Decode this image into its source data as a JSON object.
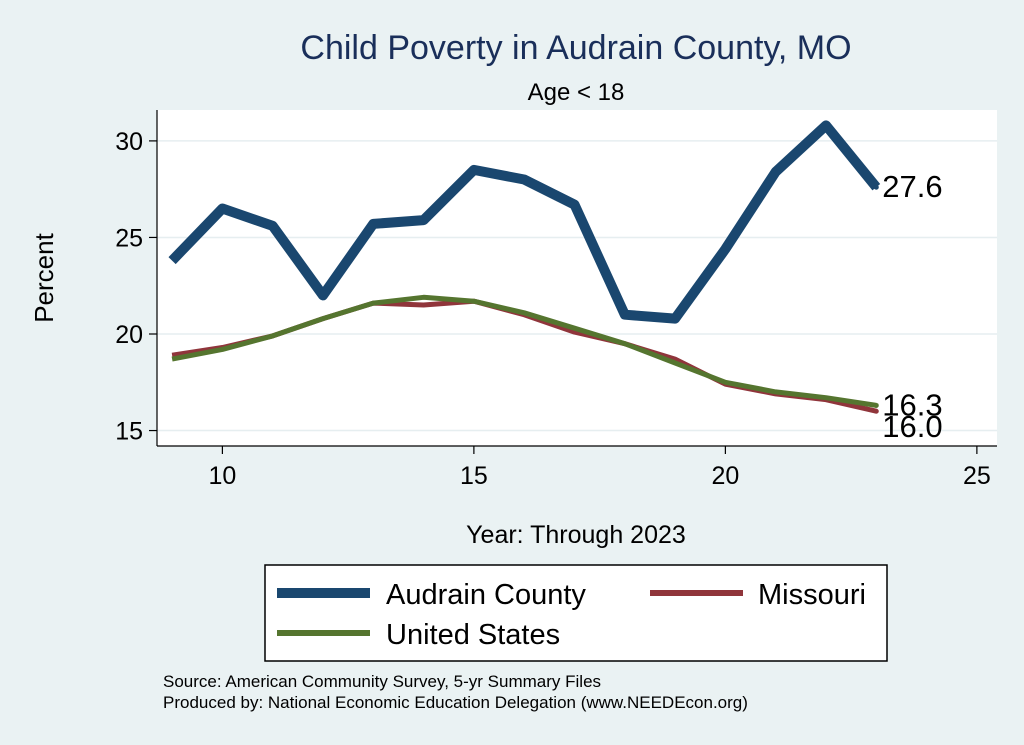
{
  "chart_data": {
    "type": "line",
    "title": "Child Poverty in Audrain County, MO",
    "subtitle": "Age < 18",
    "xlabel": "Year: Through 2023",
    "ylabel": "Percent",
    "xlim": [
      8.7,
      25.4
    ],
    "ylim": [
      14.2,
      31.6
    ],
    "xticks": [
      10,
      15,
      20,
      25
    ],
    "yticks": [
      15,
      20,
      25,
      30
    ],
    "grid": true,
    "legend_position": "bottom",
    "x": [
      9,
      10,
      11,
      12,
      13,
      14,
      15,
      16,
      17,
      18,
      19,
      20,
      21,
      22,
      23
    ],
    "series": [
      {
        "name": "Audrain County",
        "color": "#1a476f",
        "values": [
          23.8,
          26.5,
          25.6,
          22.0,
          25.7,
          25.9,
          28.5,
          28.0,
          26.7,
          21.0,
          20.8,
          24.4,
          28.4,
          30.8,
          27.6
        ],
        "end_label": "27.6"
      },
      {
        "name": "Missouri",
        "color": "#90353b",
        "values": [
          18.9,
          19.3,
          19.9,
          20.8,
          21.6,
          21.5,
          21.7,
          21.0,
          20.1,
          19.5,
          18.7,
          17.4,
          16.9,
          16.6,
          16.0
        ],
        "end_label": "16.0"
      },
      {
        "name": "United States",
        "color": "#55752f",
        "values": [
          18.7,
          19.2,
          19.9,
          20.8,
          21.6,
          21.9,
          21.7,
          21.1,
          20.3,
          19.5,
          18.5,
          17.5,
          17.0,
          16.7,
          16.3
        ],
        "end_label": "16.3"
      }
    ]
  },
  "notes": {
    "source": "Source: American Community Survey, 5-yr Summary Files",
    "produced": "Produced by: National Economic Education Delegation (www.NEEDEcon.org)"
  }
}
